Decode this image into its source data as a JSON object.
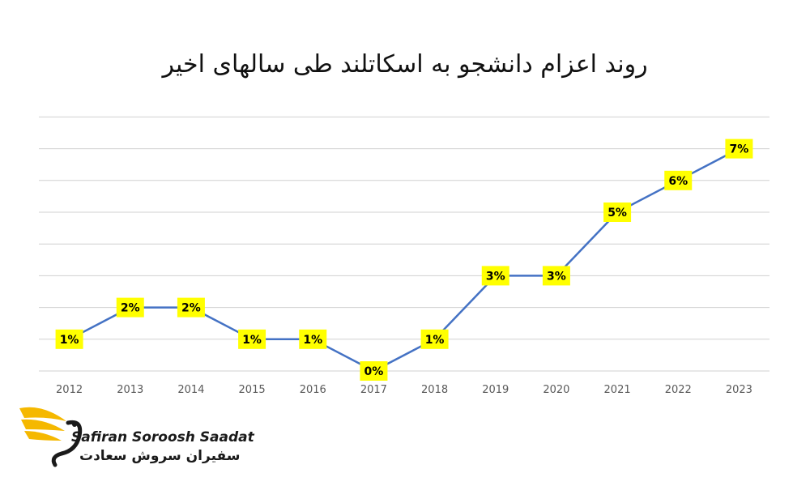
{
  "chart_data": {
    "type": "line",
    "title": "روند اعزام دانشجو به اسکاتلند طی سالهای اخیر",
    "categories": [
      "2012",
      "2013",
      "2014",
      "2015",
      "2016",
      "2017",
      "2018",
      "2019",
      "2020",
      "2021",
      "2022",
      "2023"
    ],
    "values": [
      1,
      2,
      2,
      1,
      1,
      0,
      1,
      3,
      3,
      5,
      6,
      7
    ],
    "data_labels": [
      "1%",
      "2%",
      "2%",
      "1%",
      "1%",
      "0%",
      "1%",
      "3%",
      "3%",
      "5%",
      "6%",
      "7%"
    ],
    "ylim": [
      0,
      8
    ],
    "grid": true,
    "line_color": "#4472c4",
    "label_bg_color": "#ffff00"
  },
  "logo": {
    "text_en": "Safiran Soroosh Saadat",
    "text_fa": "سفیران سروش سعادت",
    "accent_color": "#f5b800"
  }
}
